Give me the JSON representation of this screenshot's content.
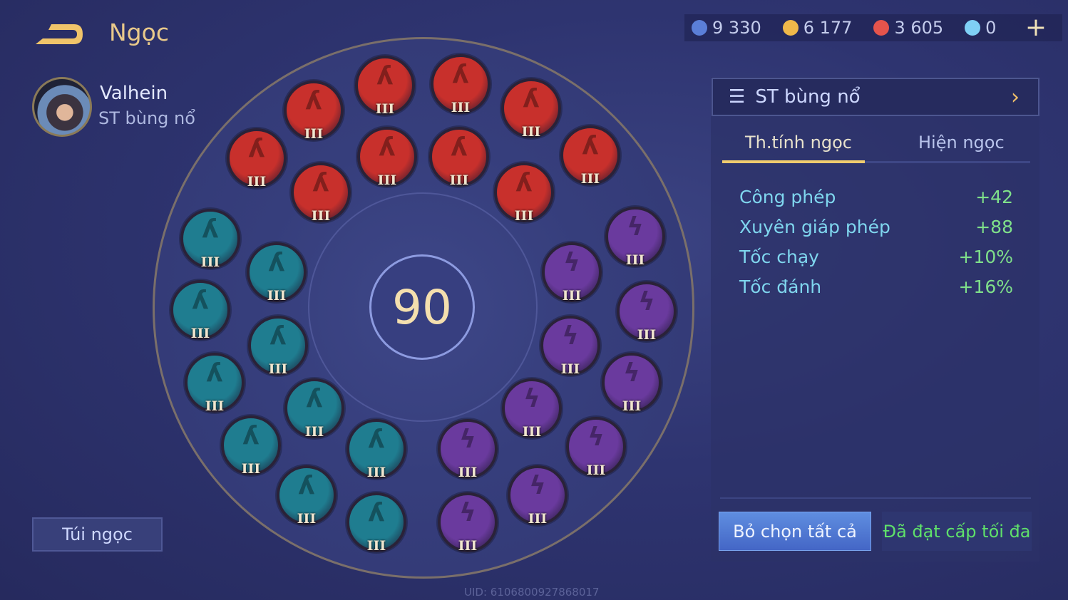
{
  "header": {
    "title": "Ngọc",
    "back_icon": "back-arrow-icon"
  },
  "hero": {
    "name": "Valhein",
    "set_name": "ST bùng nổ"
  },
  "currency": [
    {
      "icon": "voucher-icon",
      "value": "9 330",
      "color": "#5b7fd8"
    },
    {
      "icon": "gold-coin-icon",
      "value": "6 177",
      "color": "#f0b84a"
    },
    {
      "icon": "ruby-icon",
      "value": "3 605",
      "color": "#e5544c"
    },
    {
      "icon": "rune-fragment-icon",
      "value": "0",
      "color": "#7fd0f5"
    }
  ],
  "plus_label": "+",
  "board": {
    "level": "90",
    "colors": {
      "red": "#c8302c",
      "teal": "#1f7d90",
      "purple": "#6a3a9e"
    },
    "runes": [
      {
        "type": "red",
        "tier": "III"
      },
      {
        "type": "red",
        "tier": "III"
      },
      {
        "type": "red",
        "tier": "III"
      },
      {
        "type": "red",
        "tier": "III"
      },
      {
        "type": "red",
        "tier": "III"
      },
      {
        "type": "red",
        "tier": "III"
      },
      {
        "type": "red",
        "tier": "III"
      },
      {
        "type": "red",
        "tier": "III"
      },
      {
        "type": "red",
        "tier": "III"
      },
      {
        "type": "red",
        "tier": "III"
      },
      {
        "type": "teal",
        "tier": "III"
      },
      {
        "type": "teal",
        "tier": "III"
      },
      {
        "type": "teal",
        "tier": "III"
      },
      {
        "type": "teal",
        "tier": "III"
      },
      {
        "type": "teal",
        "tier": "III"
      },
      {
        "type": "teal",
        "tier": "III"
      },
      {
        "type": "teal",
        "tier": "III"
      },
      {
        "type": "teal",
        "tier": "III"
      },
      {
        "type": "teal",
        "tier": "III"
      },
      {
        "type": "teal",
        "tier": "III"
      },
      {
        "type": "purple",
        "tier": "III"
      },
      {
        "type": "purple",
        "tier": "III"
      },
      {
        "type": "purple",
        "tier": "III"
      },
      {
        "type": "purple",
        "tier": "III"
      },
      {
        "type": "purple",
        "tier": "III"
      },
      {
        "type": "purple",
        "tier": "III"
      },
      {
        "type": "purple",
        "tier": "III"
      },
      {
        "type": "purple",
        "tier": "III"
      },
      {
        "type": "purple",
        "tier": "III"
      },
      {
        "type": "purple",
        "tier": "III"
      }
    ]
  },
  "bag_label": "Túi ngọc",
  "panel": {
    "set_selector": "ST bùng nổ",
    "tabs": [
      "Th.tính ngọc",
      "Hiện ngọc"
    ],
    "stats": [
      {
        "name": "Công phép",
        "value": "+42"
      },
      {
        "name": "Xuyên giáp phép",
        "value": "+88"
      },
      {
        "name": "Tốc chạy",
        "value": "+10%"
      },
      {
        "name": "Tốc đánh",
        "value": "+16%"
      }
    ],
    "deselect_all": "Bỏ chọn tất cả",
    "max_level": "Đã đạt cấp tối đa"
  },
  "uid": "UID: 6106800927868017"
}
